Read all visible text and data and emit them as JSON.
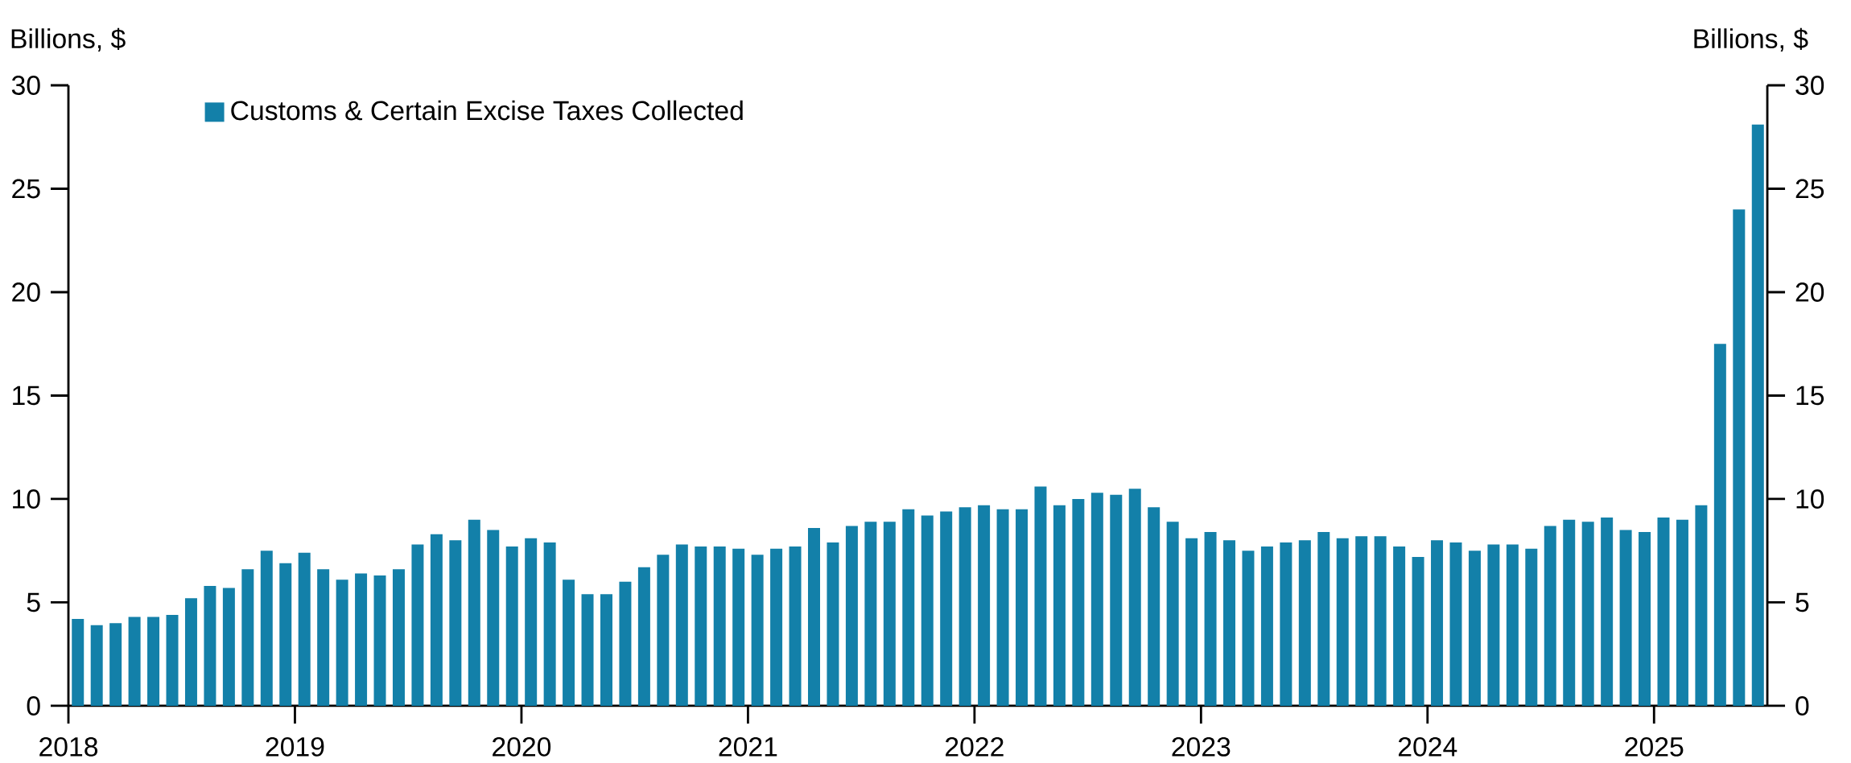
{
  "chart_data": {
    "type": "bar",
    "ylabel": "Billions, $",
    "y2label": "Billions, $",
    "x": [
      "2018-01",
      "2018-02",
      "2018-03",
      "2018-04",
      "2018-05",
      "2018-06",
      "2018-07",
      "2018-08",
      "2018-09",
      "2018-10",
      "2018-11",
      "2018-12",
      "2019-01",
      "2019-02",
      "2019-03",
      "2019-04",
      "2019-05",
      "2019-06",
      "2019-07",
      "2019-08",
      "2019-09",
      "2019-10",
      "2019-11",
      "2019-12",
      "2020-01",
      "2020-02",
      "2020-03",
      "2020-04",
      "2020-05",
      "2020-06",
      "2020-07",
      "2020-08",
      "2020-09",
      "2020-10",
      "2020-11",
      "2020-12",
      "2021-01",
      "2021-02",
      "2021-03",
      "2021-04",
      "2021-05",
      "2021-06",
      "2021-07",
      "2021-08",
      "2021-09",
      "2021-10",
      "2021-11",
      "2021-12",
      "2022-01",
      "2022-02",
      "2022-03",
      "2022-04",
      "2022-05",
      "2022-06",
      "2022-07",
      "2022-08",
      "2022-09",
      "2022-10",
      "2022-11",
      "2022-12",
      "2023-01",
      "2023-02",
      "2023-03",
      "2023-04",
      "2023-05",
      "2023-06",
      "2023-07",
      "2023-08",
      "2023-09",
      "2023-10",
      "2023-11",
      "2023-12",
      "2024-01",
      "2024-02",
      "2024-03",
      "2024-04",
      "2024-05",
      "2024-06",
      "2024-07",
      "2024-08",
      "2024-09",
      "2024-10",
      "2024-11",
      "2024-12",
      "2025-01",
      "2025-02",
      "2025-03",
      "2025-04",
      "2025-05",
      "2025-06"
    ],
    "series": [
      {
        "name": "Customs & Certain Excise Taxes Collected",
        "color": "#1380a9",
        "values": [
          4.2,
          3.9,
          4.0,
          4.3,
          4.3,
          4.4,
          5.2,
          5.8,
          5.7,
          6.6,
          7.5,
          6.9,
          7.4,
          6.6,
          6.1,
          6.4,
          6.3,
          6.6,
          7.8,
          8.3,
          8.0,
          9.0,
          8.5,
          7.7,
          8.1,
          7.9,
          6.1,
          5.4,
          5.4,
          6.0,
          6.7,
          7.3,
          7.8,
          7.7,
          7.7,
          7.6,
          7.3,
          7.6,
          7.7,
          8.6,
          7.9,
          8.7,
          8.9,
          8.9,
          9.5,
          9.2,
          9.4,
          9.6,
          9.7,
          9.5,
          9.5,
          10.6,
          9.7,
          10.0,
          10.3,
          10.2,
          10.5,
          9.6,
          8.9,
          8.1,
          8.4,
          8.0,
          7.5,
          7.7,
          7.9,
          8.0,
          8.4,
          8.1,
          8.2,
          8.2,
          7.7,
          7.2,
          8.0,
          7.9,
          7.5,
          7.8,
          7.8,
          7.6,
          8.7,
          9.0,
          8.9,
          9.1,
          8.5,
          8.4,
          9.1,
          9.0,
          9.7,
          17.5,
          24.0,
          28.1
        ]
      }
    ],
    "xlim": [
      "2018-01",
      "2025-07"
    ],
    "xticks": [
      "2018",
      "2019",
      "2020",
      "2021",
      "2022",
      "2023",
      "2024",
      "2025"
    ],
    "ylim": [
      0,
      30
    ],
    "yticks": [
      0,
      5,
      10,
      15,
      20,
      25,
      30
    ],
    "y2lim": [
      0,
      30
    ],
    "y2ticks": [
      0,
      5,
      10,
      15,
      20,
      25,
      30
    ],
    "grid": false,
    "legend": "top left"
  }
}
